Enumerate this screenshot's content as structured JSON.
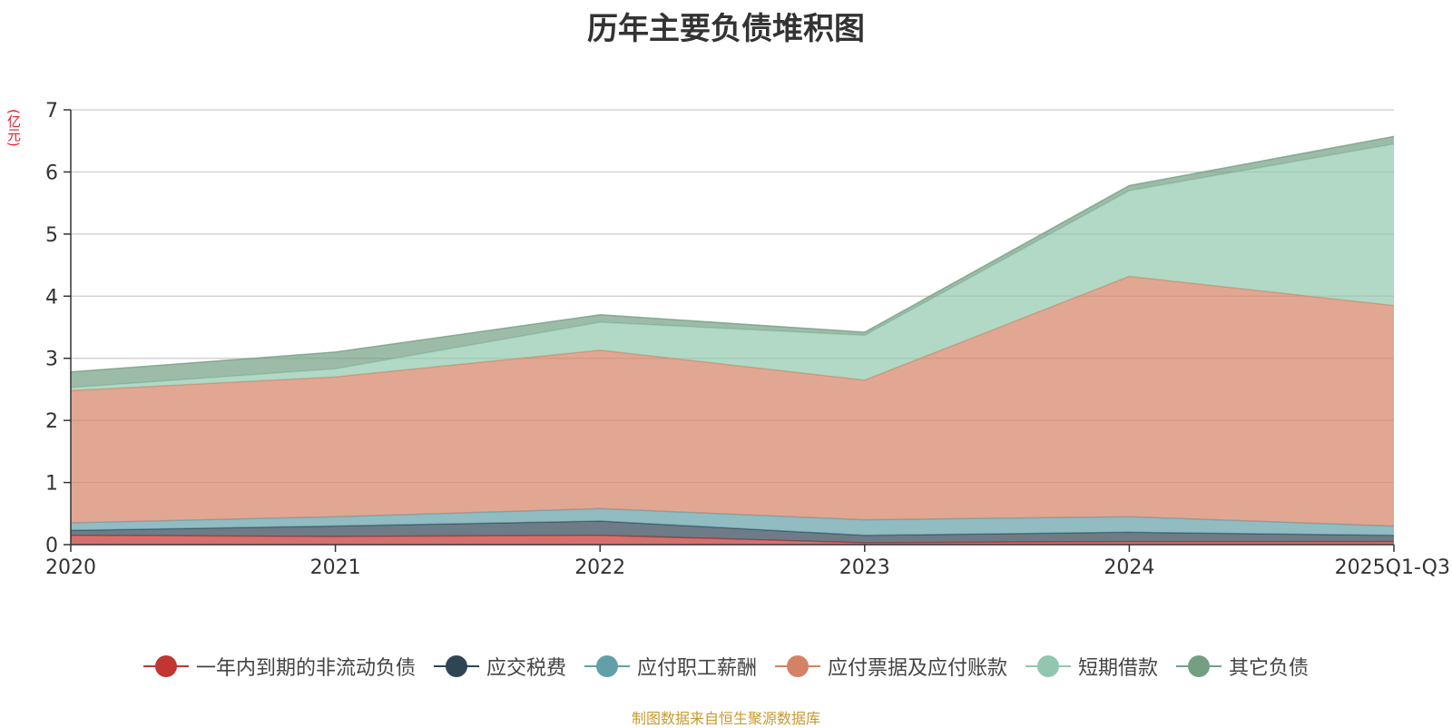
{
  "colors": {
    "title": "#333333",
    "unit": "#e8202a",
    "axis": "#333333",
    "grid": "#cccccc",
    "source": "#c89a2e"
  },
  "chart_data": {
    "type": "area",
    "stacked": true,
    "title": "历年主要负债堆积图",
    "unit_label": "(亿元)",
    "categories": [
      "2020",
      "2021",
      "2022",
      "2023",
      "2024",
      "2025Q1-Q3"
    ],
    "ylim": [
      0,
      7
    ],
    "yticks": [
      "0",
      "1",
      "2",
      "3",
      "4",
      "5",
      "6",
      "7"
    ],
    "grid": true,
    "legend_position": "bottom",
    "series": [
      {
        "name": "一年内到期的非流动负债",
        "color": "#c23531",
        "values": [
          0.15,
          0.13,
          0.15,
          0.03,
          0.05,
          0.05
        ]
      },
      {
        "name": "应交税费",
        "color": "#2f4554",
        "values": [
          0.08,
          0.17,
          0.23,
          0.12,
          0.15,
          0.1
        ]
      },
      {
        "name": "应付职工薪酬",
        "color": "#61a0a8",
        "values": [
          0.12,
          0.15,
          0.2,
          0.25,
          0.25,
          0.15
        ]
      },
      {
        "name": "应付票据及应付账款",
        "color": "#d48265",
        "values": [
          2.13,
          2.25,
          2.55,
          2.25,
          3.87,
          3.55
        ]
      },
      {
        "name": "短期借款",
        "color": "#91c7ae",
        "values": [
          0.05,
          0.13,
          0.45,
          0.72,
          1.38,
          2.6
        ]
      },
      {
        "name": "其它负债",
        "color": "#749f83",
        "values": [
          0.25,
          0.27,
          0.12,
          0.05,
          0.08,
          0.12
        ]
      }
    ]
  },
  "source_note": "制图数据来自恒生聚源数据库"
}
